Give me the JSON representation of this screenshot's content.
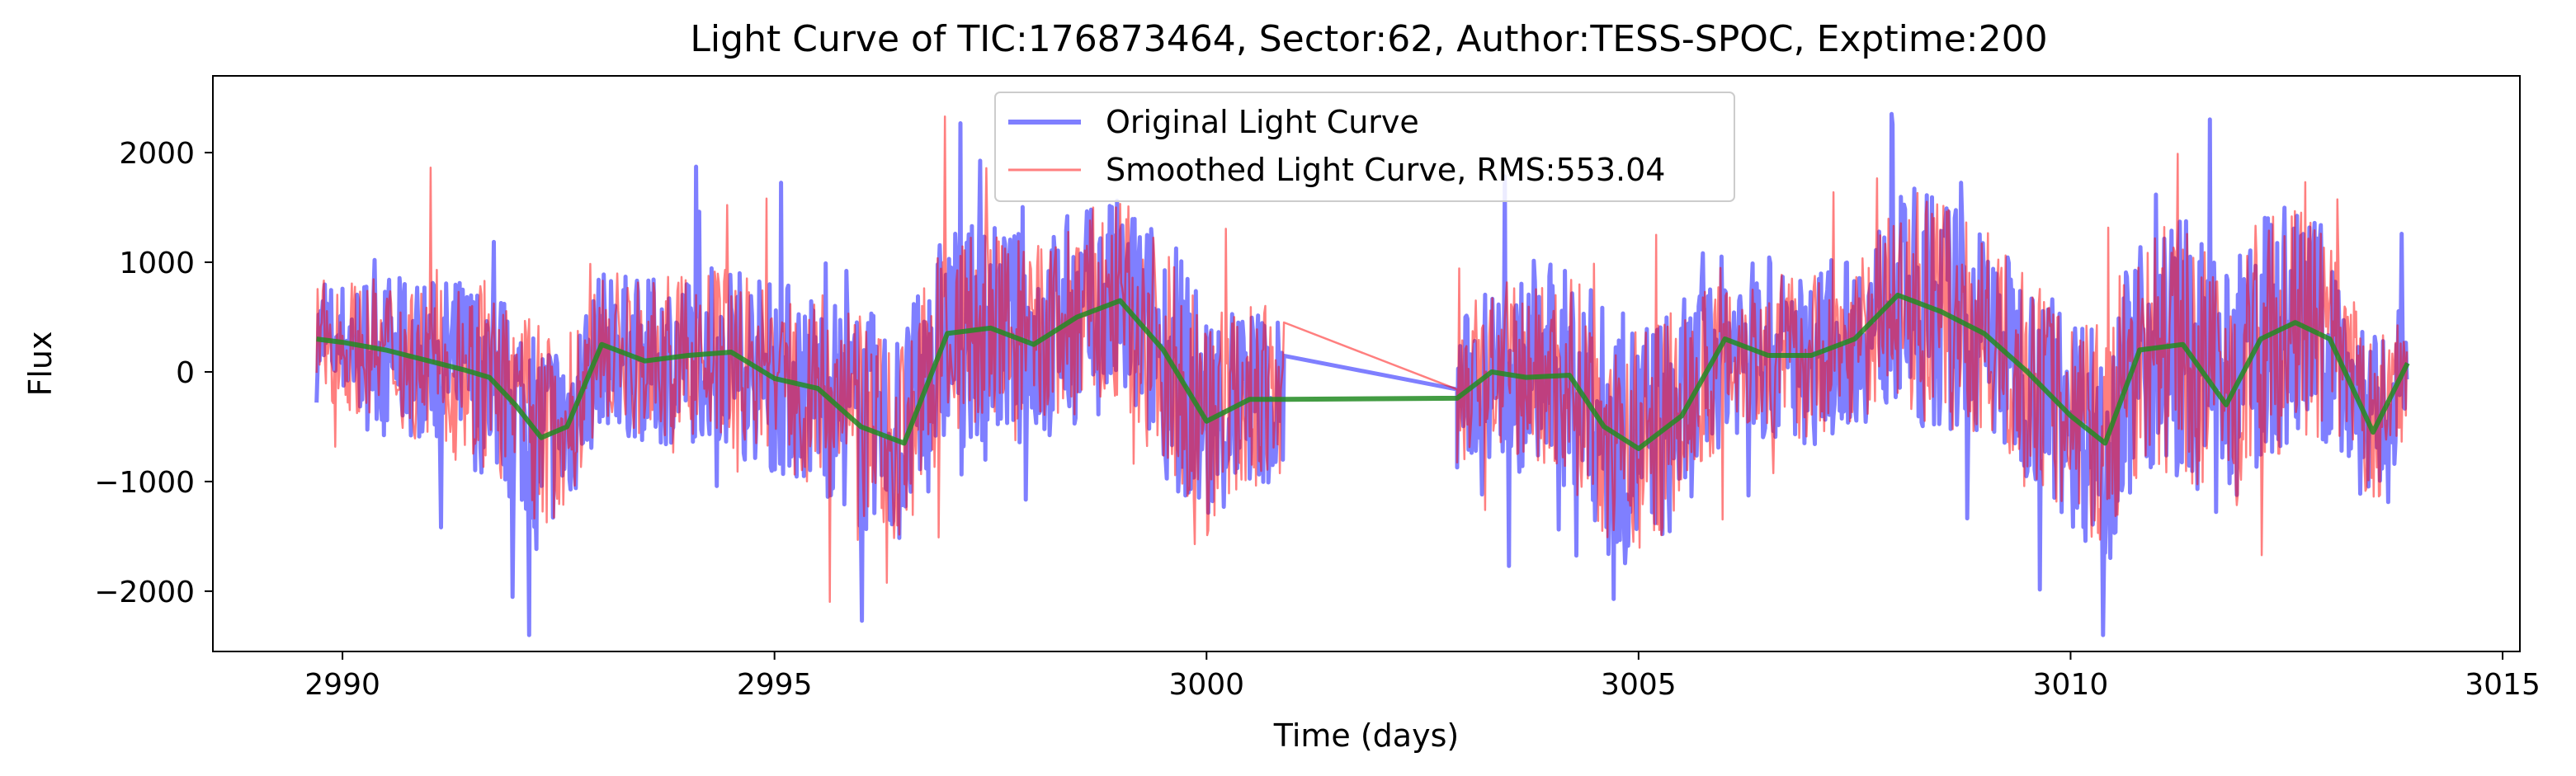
{
  "chart_data": {
    "type": "line",
    "title": "Light Curve of TIC:176873464, Sector:62, Author:TESS-SPOC, Exptime:200",
    "xlabel": "Time (days)",
    "ylabel": "Flux",
    "xlim": [
      2988.5,
      3015.2
    ],
    "ylim": [
      -2550,
      2700
    ],
    "x_ticks": [
      2990,
      2995,
      3000,
      3005,
      3010,
      3015
    ],
    "y_ticks": [
      -2000,
      -1000,
      0,
      1000,
      2000
    ],
    "x_tick_labels": [
      "2990",
      "2995",
      "3000",
      "3005",
      "3010",
      "3015"
    ],
    "y_tick_labels": [
      "−2000",
      "−1000",
      "0",
      "1000",
      "2000"
    ],
    "grid": false,
    "legend_position": "top-center",
    "data_gap": [
      3000.9,
      3002.9
    ],
    "series": [
      {
        "name": "Original Light Curve",
        "color": "#0000ff",
        "alpha": 0.5,
        "style": "thick-noisy",
        "x_range": [
          2989.7,
          3013.9
        ],
        "amplitude": 1500,
        "envelope": [
          [
            2989.7,
            1000
          ],
          [
            2992.2,
            1800
          ],
          [
            2993.0,
            1300
          ],
          [
            2995.5,
            1700
          ],
          [
            2996.2,
            1900
          ],
          [
            2998.5,
            1800
          ],
          [
            2999.9,
            2000
          ],
          [
            3000.9,
            1400
          ],
          [
            3003.0,
            1300
          ],
          [
            3004.2,
            1900
          ],
          [
            3005.0,
            2100
          ],
          [
            3006.0,
            1500
          ],
          [
            3007.5,
            1400
          ],
          [
            3008.3,
            2000
          ],
          [
            3009.5,
            1700
          ],
          [
            3010.5,
            2000
          ],
          [
            3011.2,
            2200
          ],
          [
            3012.5,
            2100
          ],
          [
            3013.9,
            1200
          ]
        ]
      },
      {
        "name": "Smoothed Light Curve, RMS:553.04",
        "color": "#ff0000",
        "alpha": 0.5,
        "style": "thin-noisy",
        "x_range": [
          2989.7,
          3013.9
        ],
        "amplitude": 1300
      },
      {
        "name": "",
        "color": "#228b22",
        "alpha": 0.85,
        "style": "trend",
        "x": [
          2989.7,
          2990.0,
          2990.5,
          2991.0,
          2991.4,
          2991.7,
          2992.0,
          2992.3,
          2992.6,
          2993.0,
          2993.5,
          2994.0,
          2994.5,
          2995.0,
          2995.5,
          2996.0,
          2996.5,
          2997.0,
          2997.5,
          2998.0,
          2998.5,
          2999.0,
          2999.5,
          3000.0,
          3000.5,
          3000.9,
          3002.9,
          3003.3,
          3003.7,
          3004.2,
          3004.6,
          3005.0,
          3005.5,
          3006.0,
          3006.5,
          3007.0,
          3007.5,
          3008.0,
          3008.5,
          3009.0,
          3009.5,
          3010.0,
          3010.4,
          3010.8,
          3011.3,
          3011.8,
          3012.2,
          3012.6,
          3013.0,
          3013.5,
          3013.9
        ],
        "y": [
          300,
          270,
          200,
          100,
          20,
          -50,
          -300,
          -600,
          -500,
          250,
          100,
          150,
          180,
          -60,
          -150,
          -500,
          -650,
          350,
          400,
          250,
          500,
          650,
          200,
          -450,
          -250,
          -250,
          -240,
          0,
          -50,
          -30,
          -500,
          -700,
          -400,
          300,
          150,
          150,
          300,
          700,
          550,
          350,
          0,
          -400,
          -650,
          200,
          250,
          -300,
          300,
          450,
          300,
          -550,
          80
        ]
      }
    ]
  }
}
